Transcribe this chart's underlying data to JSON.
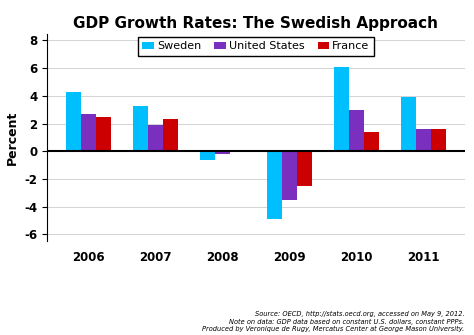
{
  "title": "GDP Growth Rates: The Swedish Approach",
  "years": [
    2006,
    2007,
    2008,
    2009,
    2010,
    2011
  ],
  "sweden": [
    4.3,
    3.3,
    -0.6,
    -4.9,
    6.1,
    3.9
  ],
  "united_states": [
    2.7,
    1.9,
    -0.2,
    -3.5,
    3.0,
    1.6
  ],
  "france": [
    2.5,
    2.3,
    0.0,
    -2.5,
    1.4,
    1.6
  ],
  "colors": {
    "sweden": "#00BFFF",
    "united_states": "#7B2FBE",
    "france": "#CC0000"
  },
  "legend_labels": [
    "Sweden",
    "United States",
    "France"
  ],
  "ylabel": "Percent",
  "ylim": [
    -6.5,
    8.5
  ],
  "yticks": [
    -6,
    -4,
    -2,
    0,
    2,
    4,
    6,
    8
  ],
  "footnote_line1": "Source: OECD, http://stats.oecd.org, accessed on May 9, 2012.",
  "footnote_line2": "Note on data: GDP data based on constant U.S. dollars, constant PPPs.",
  "footnote_line3": "Produced by Veronique de Rugy, Mercatus Center at George Mason University.",
  "bar_width": 0.22,
  "background_color": "#FFFFFF",
  "grid_color": "#CCCCCC",
  "title_fontsize": 11,
  "tick_fontsize": 8.5,
  "ylabel_fontsize": 9
}
